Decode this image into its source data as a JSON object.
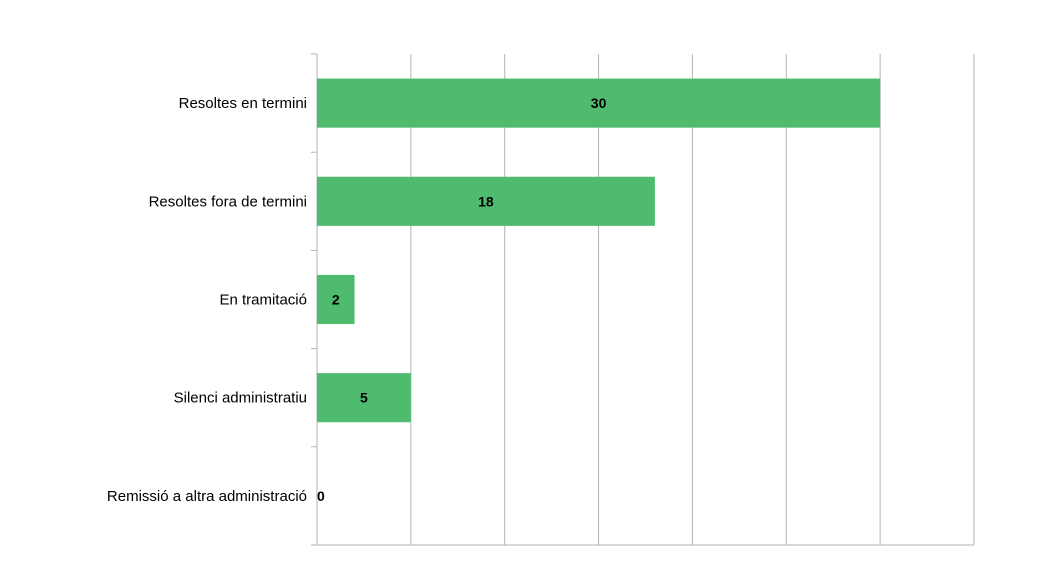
{
  "chart_data": {
    "type": "bar",
    "orientation": "horizontal",
    "title": "",
    "xlabel": "",
    "ylabel": "",
    "categories": [
      "Resoltes en termini",
      "Resoltes fora de termini",
      "En tramitació",
      "Silenci administratiu",
      "Remissió a altra administració"
    ],
    "values": [
      30,
      18,
      2,
      5,
      0
    ],
    "xlim": [
      0,
      35
    ],
    "grid_step": 5,
    "grid": true,
    "legend": "none",
    "bar_color": "#4fbb6f",
    "grid_color": "#b3b3b3"
  }
}
